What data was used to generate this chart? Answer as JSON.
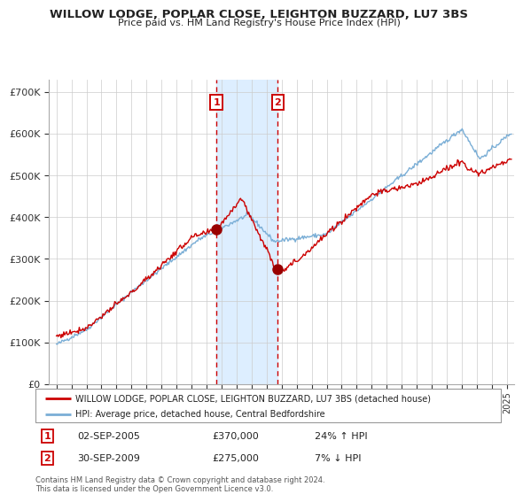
{
  "title": "WILLOW LODGE, POPLAR CLOSE, LEIGHTON BUZZARD, LU7 3BS",
  "subtitle": "Price paid vs. HM Land Registry's House Price Index (HPI)",
  "legend_line1": "WILLOW LODGE, POPLAR CLOSE, LEIGHTON BUZZARD, LU7 3BS (detached house)",
  "legend_line2": "HPI: Average price, detached house, Central Bedfordshire",
  "annotation1_label": "1",
  "annotation1_date": "02-SEP-2005",
  "annotation1_price": "£370,000",
  "annotation1_hpi": "24% ↑ HPI",
  "annotation2_label": "2",
  "annotation2_date": "30-SEP-2009",
  "annotation2_price": "£275,000",
  "annotation2_hpi": "7% ↓ HPI",
  "footer": "Contains HM Land Registry data © Crown copyright and database right 2024.\nThis data is licensed under the Open Government Licence v3.0.",
  "red_color": "#cc0000",
  "blue_color": "#7aaed6",
  "shading_color": "#ddeeff",
  "dot_color": "#990000",
  "annotation_box_color": "#cc0000",
  "grid_color": "#cccccc",
  "bg_color": "#ffffff",
  "ylim": [
    0,
    730000
  ],
  "yticks": [
    0,
    100000,
    200000,
    300000,
    400000,
    500000,
    600000,
    700000
  ],
  "ytick_labels": [
    "£0",
    "£100K",
    "£200K",
    "£300K",
    "£400K",
    "£500K",
    "£600K",
    "£700K"
  ],
  "sale1_x": 2005.67,
  "sale1_y": 370000,
  "sale2_x": 2009.75,
  "sale2_y": 275000,
  "shade_x1": 2005.67,
  "shade_x2": 2009.75,
  "vline1_x": 2005.67,
  "vline2_x": 2009.75,
  "xmin": 1994.5,
  "xmax": 2025.5
}
